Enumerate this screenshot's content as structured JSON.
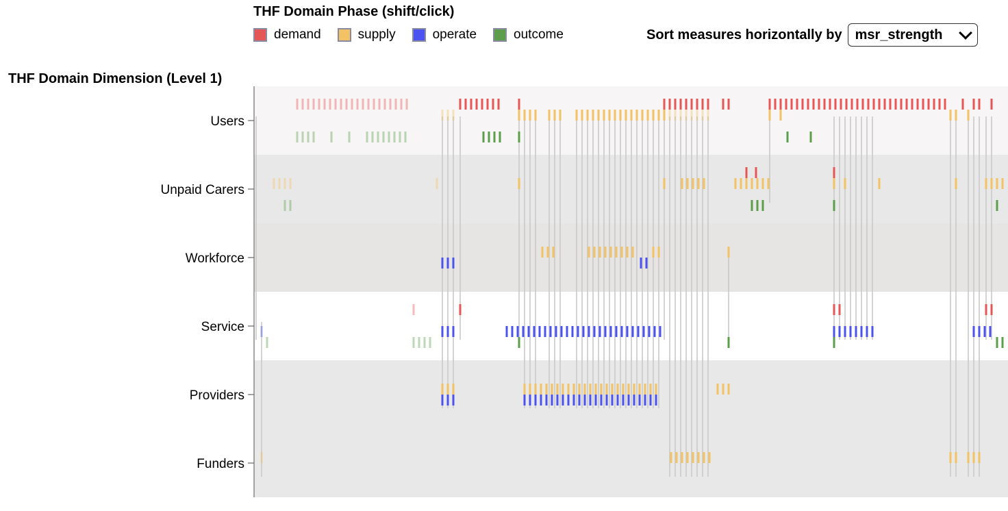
{
  "legend": {
    "title": "THF Domain Phase (shift/click)",
    "items": [
      {
        "label": "demand",
        "color": "#e45756"
      },
      {
        "label": "supply",
        "color": "#f2c265"
      },
      {
        "label": "operate",
        "color": "#4c52f0"
      },
      {
        "label": "outcome",
        "color": "#5d9e4c"
      }
    ]
  },
  "sort": {
    "label": "Sort measures horizontally by",
    "selected": "msr_strength"
  },
  "chart_data": {
    "type": "scatter",
    "ylabel": "THF Domain Dimension (Level 1)",
    "categories": [
      "Users",
      "Unpaid Carers",
      "Workforce",
      "Service",
      "Providers",
      "Funders"
    ],
    "row_band_colors": [
      "#f7f5f5",
      "#e9e8e8",
      "#e6e5e4",
      "#ffffff",
      "#e9e8e8",
      "#e9e8e8"
    ],
    "phases": [
      "demand",
      "supply",
      "operate",
      "outcome"
    ],
    "series": [
      {
        "name": "demand",
        "marks": [
          {
            "row": "Users",
            "x": [
              434,
              442,
              450,
              458,
              466,
              474,
              482,
              490,
              498,
              506,
              514,
              522,
              530,
              538,
              546,
              554,
              562,
              570,
              578,
              586,
              594,
              672,
              680,
              688,
              696,
              704,
              712,
              720,
              728,
              758,
              970,
              978,
              986,
              994,
              1002,
              1010,
              1018,
              1026,
              1034,
              1056,
              1064,
              1124,
              1132,
              1140,
              1148,
              1156,
              1164,
              1172,
              1180,
              1188,
              1196,
              1204,
              1212,
              1220,
              1228,
              1236,
              1244,
              1252,
              1260,
              1268,
              1276,
              1284,
              1292,
              1300,
              1308,
              1316,
              1324,
              1332,
              1340,
              1348,
              1356,
              1364,
              1372,
              1380,
              1406,
              1422,
              1430,
              1448
            ],
            "faded": [
              434,
              442,
              450,
              458,
              466,
              474,
              482,
              490,
              498,
              506,
              514,
              522,
              530,
              538,
              546,
              554,
              562,
              570,
              578,
              586,
              594
            ]
          },
          {
            "row": "Unpaid Carers",
            "x": [
              1090,
              1104,
              1218
            ]
          },
          {
            "row": "Service",
            "x": [
              604,
              672,
              1218,
              1226,
              1440,
              1448
            ],
            "faded": [
              604
            ]
          }
        ]
      },
      {
        "name": "supply",
        "marks": [
          {
            "row": "Users",
            "x": [
              646,
              654,
              662,
              758,
              766,
              774,
              782,
              802,
              810,
              818,
              842,
              850,
              858,
              866,
              874,
              882,
              890,
              898,
              906,
              914,
              922,
              930,
              938,
              946,
              954,
              962,
              970,
              978,
              986,
              994,
              1002,
              1010,
              1018,
              1026,
              1034,
              1124,
              1140,
              1388,
              1396,
              1414
            ],
            "faded": [
              646,
              654,
              662,
              978,
              986,
              994,
              1002,
              1010,
              1018,
              1026,
              1034
            ]
          },
          {
            "row": "Unpaid Carers",
            "x": [
              400,
              408,
              416,
              424,
              638,
              758,
              970,
              996,
              1004,
              1012,
              1020,
              1028,
              1074,
              1082,
              1090,
              1098,
              1106,
              1114,
              1122,
              1218,
              1234,
              1284,
              1396,
              1440,
              1448,
              1456,
              1464
            ],
            "faded": [
              400,
              408,
              416,
              424,
              638
            ]
          },
          {
            "row": "Workforce",
            "x": [
              792,
              800,
              808,
              860,
              868,
              876,
              884,
              892,
              900,
              908,
              916,
              924,
              954,
              962,
              1064
            ]
          },
          {
            "row": "Providers",
            "x": [
              646,
              654,
              662,
              766,
              774,
              782,
              790,
              798,
              806,
              814,
              822,
              830,
              838,
              846,
              854,
              862,
              870,
              878,
              886,
              894,
              902,
              910,
              918,
              926,
              934,
              942,
              950,
              958,
              1048,
              1056,
              1064
            ]
          },
          {
            "row": "Funders",
            "x": [
              382,
              980,
              988,
              996,
              1004,
              1012,
              1020,
              1028,
              1036,
              1388,
              1396,
              1414,
              1422,
              1430
            ],
            "faded": [
              382
            ]
          }
        ]
      },
      {
        "name": "operate",
        "marks": [
          {
            "row": "Workforce",
            "x": [
              646,
              654,
              662,
              936,
              944
            ]
          },
          {
            "row": "Service",
            "x": [
              382,
              646,
              654,
              662,
              740,
              748,
              756,
              764,
              772,
              780,
              788,
              796,
              804,
              812,
              820,
              828,
              836,
              844,
              852,
              860,
              868,
              876,
              884,
              892,
              900,
              908,
              916,
              924,
              932,
              940,
              948,
              956,
              964,
              1218,
              1226,
              1234,
              1242,
              1250,
              1258,
              1266,
              1274,
              1422,
              1430,
              1438,
              1446
            ],
            "faded": [
              382
            ]
          },
          {
            "row": "Providers",
            "x": [
              646,
              654,
              662,
              766,
              774,
              782,
              790,
              798,
              806,
              814,
              822,
              830,
              838,
              846,
              854,
              862,
              870,
              878,
              886,
              894,
              902,
              910,
              918,
              926,
              934,
              942,
              950,
              958
            ]
          }
        ]
      },
      {
        "name": "outcome",
        "marks": [
          {
            "row": "Users",
            "x": [
              434,
              442,
              450,
              458,
              484,
              510,
              536,
              544,
              552,
              560,
              568,
              576,
              584,
              592,
              706,
              714,
              722,
              730,
              758,
              1150,
              1184
            ],
            "faded": [
              434,
              442,
              450,
              458,
              484,
              510,
              536,
              544,
              552,
              560,
              568,
              576,
              584,
              592
            ]
          },
          {
            "row": "Unpaid Carers",
            "x": [
              416,
              424,
              1098,
              1106,
              1114,
              1218,
              1456
            ],
            "faded": [
              416,
              424
            ]
          },
          {
            "row": "Service",
            "x": [
              390,
              604,
              612,
              620,
              628,
              758,
              1064,
              1218,
              1456,
              1464
            ],
            "faded": [
              390,
              604,
              612,
              620,
              628
            ]
          }
        ]
      }
    ],
    "links": [
      {
        "x": 374,
        "from": "Users",
        "to": "Service"
      },
      {
        "x": 382,
        "from": "Service",
        "to": "Funders"
      },
      {
        "x": 646,
        "from": "Users",
        "to": "Providers"
      },
      {
        "x": 654,
        "from": "Users",
        "to": "Providers"
      },
      {
        "x": 662,
        "from": "Users",
        "to": "Providers"
      },
      {
        "x": 672,
        "from": "Users",
        "to": "Service"
      },
      {
        "x": 758,
        "from": "Users",
        "to": "Service"
      },
      {
        "x": 766,
        "from": "Users",
        "to": "Providers"
      },
      {
        "x": 774,
        "from": "Users",
        "to": "Providers"
      },
      {
        "x": 782,
        "from": "Users",
        "to": "Providers"
      },
      {
        "x": 802,
        "from": "Users",
        "to": "Providers"
      },
      {
        "x": 810,
        "from": "Users",
        "to": "Providers"
      },
      {
        "x": 818,
        "from": "Users",
        "to": "Providers"
      },
      {
        "x": 842,
        "from": "Users",
        "to": "Providers"
      },
      {
        "x": 850,
        "from": "Users",
        "to": "Providers"
      },
      {
        "x": 858,
        "from": "Users",
        "to": "Providers"
      },
      {
        "x": 866,
        "from": "Users",
        "to": "Providers"
      },
      {
        "x": 874,
        "from": "Users",
        "to": "Providers"
      },
      {
        "x": 882,
        "from": "Users",
        "to": "Providers"
      },
      {
        "x": 890,
        "from": "Users",
        "to": "Providers"
      },
      {
        "x": 898,
        "from": "Users",
        "to": "Providers"
      },
      {
        "x": 906,
        "from": "Users",
        "to": "Providers"
      },
      {
        "x": 914,
        "from": "Users",
        "to": "Providers"
      },
      {
        "x": 922,
        "from": "Users",
        "to": "Providers"
      },
      {
        "x": 930,
        "from": "Users",
        "to": "Providers"
      },
      {
        "x": 938,
        "from": "Users",
        "to": "Providers"
      },
      {
        "x": 946,
        "from": "Users",
        "to": "Providers"
      },
      {
        "x": 954,
        "from": "Users",
        "to": "Providers"
      },
      {
        "x": 962,
        "from": "Users",
        "to": "Providers"
      },
      {
        "x": 970,
        "from": "Users",
        "to": "Service"
      },
      {
        "x": 978,
        "from": "Users",
        "to": "Funders"
      },
      {
        "x": 986,
        "from": "Users",
        "to": "Funders"
      },
      {
        "x": 994,
        "from": "Users",
        "to": "Funders"
      },
      {
        "x": 1002,
        "from": "Users",
        "to": "Funders"
      },
      {
        "x": 1010,
        "from": "Users",
        "to": "Funders"
      },
      {
        "x": 1018,
        "from": "Users",
        "to": "Funders"
      },
      {
        "x": 1026,
        "from": "Users",
        "to": "Funders"
      },
      {
        "x": 1034,
        "from": "Users",
        "to": "Funders"
      },
      {
        "x": 1064,
        "from": "Workforce",
        "to": "Service"
      },
      {
        "x": 1124,
        "from": "Users",
        "to": "Unpaid Carers"
      },
      {
        "x": 1218,
        "from": "Users",
        "to": "Service"
      },
      {
        "x": 1226,
        "from": "Users",
        "to": "Service"
      },
      {
        "x": 1234,
        "from": "Users",
        "to": "Service"
      },
      {
        "x": 1242,
        "from": "Users",
        "to": "Service"
      },
      {
        "x": 1250,
        "from": "Users",
        "to": "Service"
      },
      {
        "x": 1258,
        "from": "Users",
        "to": "Service"
      },
      {
        "x": 1266,
        "from": "Users",
        "to": "Service"
      },
      {
        "x": 1274,
        "from": "Users",
        "to": "Service"
      },
      {
        "x": 1388,
        "from": "Users",
        "to": "Funders"
      },
      {
        "x": 1396,
        "from": "Users",
        "to": "Funders"
      },
      {
        "x": 1414,
        "from": "Users",
        "to": "Funders"
      },
      {
        "x": 1422,
        "from": "Users",
        "to": "Funders"
      },
      {
        "x": 1430,
        "from": "Users",
        "to": "Funders"
      },
      {
        "x": 1440,
        "from": "Users",
        "to": "Service"
      },
      {
        "x": 1448,
        "from": "Users",
        "to": "Service"
      }
    ]
  }
}
